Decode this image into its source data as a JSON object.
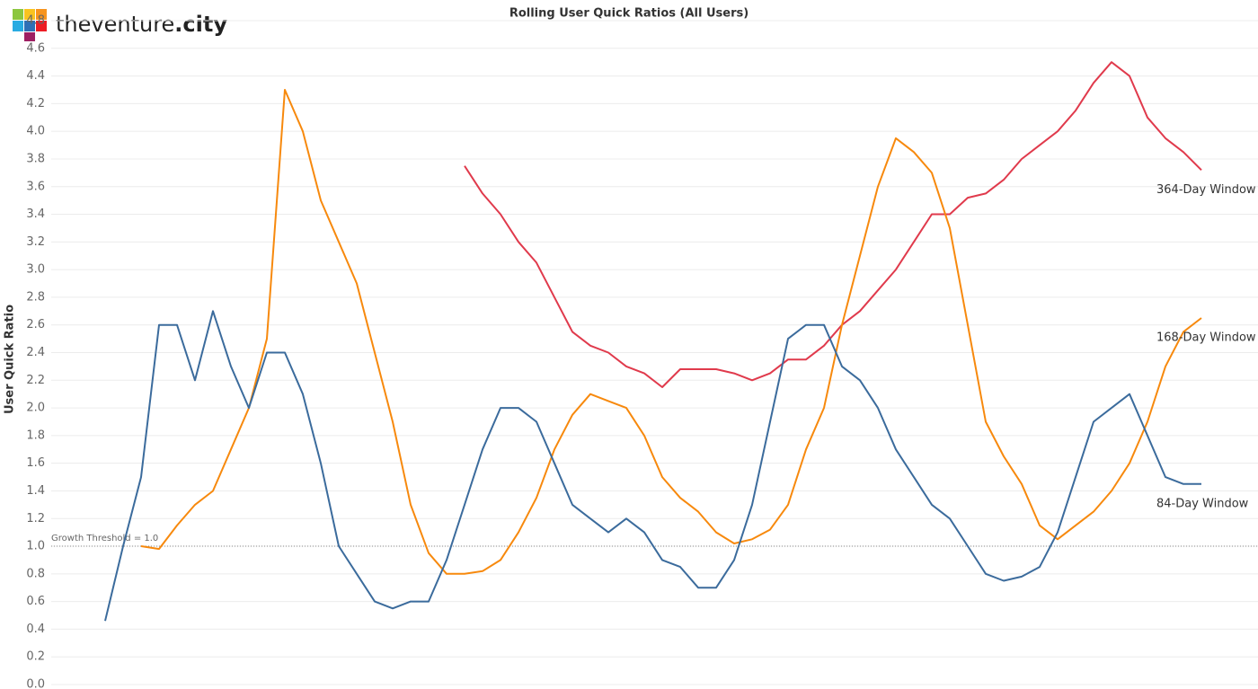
{
  "logo": {
    "name": "theventure",
    "suffix": ".city"
  },
  "chart_data": {
    "type": "line",
    "title": "Rolling User Quick Ratios (All Users)",
    "y_label": "User Quick Ratio",
    "ylim": [
      0,
      4.8
    ],
    "yticks": [
      {
        "value": 0,
        "label": "0.0"
      },
      {
        "value": 0.2,
        "label": "0.2"
      },
      {
        "value": 0.4,
        "label": "0.4"
      },
      {
        "value": 0.6,
        "label": "0.6"
      },
      {
        "value": 0.8,
        "label": "0.8"
      },
      {
        "value": 1,
        "label": "1.0"
      },
      {
        "value": 1.2,
        "label": "1.2"
      },
      {
        "value": 1.4,
        "label": "1.4"
      },
      {
        "value": 1.6,
        "label": "1.6"
      },
      {
        "value": 1.8,
        "label": "1.8"
      },
      {
        "value": 2,
        "label": "2.0"
      },
      {
        "value": 2.2,
        "label": "2.2"
      },
      {
        "value": 2.4,
        "label": "2.4"
      },
      {
        "value": 2.6,
        "label": "2.6"
      },
      {
        "value": 2.8,
        "label": "2.8"
      },
      {
        "value": 3,
        "label": "3.0"
      },
      {
        "value": 3.2,
        "label": "3.2"
      },
      {
        "value": 3.4,
        "label": "3.4"
      },
      {
        "value": 3.6,
        "label": "3.6"
      },
      {
        "value": 3.8,
        "label": "3.8"
      },
      {
        "value": 4,
        "label": "4.0"
      },
      {
        "value": 4.2,
        "label": "4.2"
      },
      {
        "value": 4.4,
        "label": "4.4"
      },
      {
        "value": 4.6,
        "label": "4.6"
      },
      {
        "value": 4.8,
        "label": "4.8"
      }
    ],
    "grid": true,
    "threshold": 1.0,
    "threshold_label": "Growth Threshold = 1.0",
    "categories": [
      null,
      null,
      null,
      null,
      null,
      null,
      null,
      null,
      null,
      null,
      null,
      null,
      null,
      null,
      null,
      null,
      null,
      null,
      null,
      null,
      null,
      null,
      null,
      null,
      null,
      null,
      null,
      null,
      null,
      null,
      null,
      null,
      null,
      null,
      null,
      null,
      null,
      null,
      null,
      null,
      null,
      null,
      null,
      null,
      null,
      null,
      null,
      null,
      null,
      null,
      null,
      null,
      null,
      null,
      null,
      null,
      null,
      null,
      null,
      null,
      null,
      null
    ],
    "series": [
      {
        "name": "364-Day Window",
        "color": "#e03a4c",
        "values": [
          null,
          null,
          null,
          null,
          null,
          null,
          null,
          null,
          null,
          null,
          null,
          null,
          null,
          null,
          null,
          null,
          null,
          null,
          null,
          null,
          3.75,
          3.55,
          3.4,
          3.2,
          3.05,
          2.8,
          2.55,
          2.45,
          2.4,
          2.3,
          2.25,
          2.15,
          2.28,
          2.28,
          2.28,
          2.25,
          2.2,
          2.25,
          2.35,
          2.35,
          2.45,
          2.6,
          2.7,
          2.85,
          3.0,
          3.2,
          3.4,
          3.4,
          3.52,
          3.55,
          3.65,
          3.8,
          3.9,
          4.0,
          4.15,
          4.35,
          4.5,
          4.4,
          4.1,
          3.95,
          3.85,
          3.72
        ]
      },
      {
        "name": "168-Day Window",
        "color": "#f7890d",
        "values": [
          null,
          null,
          1.0,
          0.98,
          1.15,
          1.3,
          1.4,
          1.7,
          2.0,
          2.5,
          4.3,
          4.0,
          3.5,
          3.2,
          2.9,
          2.4,
          1.9,
          1.3,
          0.95,
          0.8,
          0.8,
          0.82,
          0.9,
          1.1,
          1.35,
          1.7,
          1.95,
          2.1,
          2.05,
          2.0,
          1.8,
          1.5,
          1.35,
          1.25,
          1.1,
          1.02,
          1.05,
          1.12,
          1.3,
          1.7,
          2.0,
          2.6,
          3.1,
          3.6,
          3.95,
          3.85,
          3.7,
          3.3,
          2.6,
          1.9,
          1.65,
          1.45,
          1.15,
          1.05,
          1.15,
          1.25,
          1.4,
          1.6,
          1.9,
          2.3,
          2.55,
          2.65
        ]
      },
      {
        "name": "84-Day Window",
        "color": "#3b6b9c",
        "values": [
          0.46,
          1.0,
          1.5,
          2.6,
          2.6,
          2.2,
          2.7,
          2.3,
          2.0,
          2.4,
          2.4,
          2.1,
          1.6,
          1.0,
          0.8,
          0.6,
          0.55,
          0.6,
          0.6,
          0.9,
          1.3,
          1.7,
          2.0,
          2.0,
          1.9,
          1.6,
          1.3,
          1.2,
          1.1,
          1.2,
          1.1,
          0.9,
          0.85,
          0.7,
          0.7,
          0.9,
          1.3,
          1.9,
          2.5,
          2.6,
          2.6,
          2.3,
          2.2,
          2.0,
          1.7,
          1.5,
          1.3,
          1.2,
          1.0,
          0.8,
          0.75,
          0.78,
          0.85,
          1.1,
          1.5,
          1.9,
          2.0,
          2.1,
          1.8,
          1.5,
          1.45,
          1.45
        ]
      }
    ]
  }
}
